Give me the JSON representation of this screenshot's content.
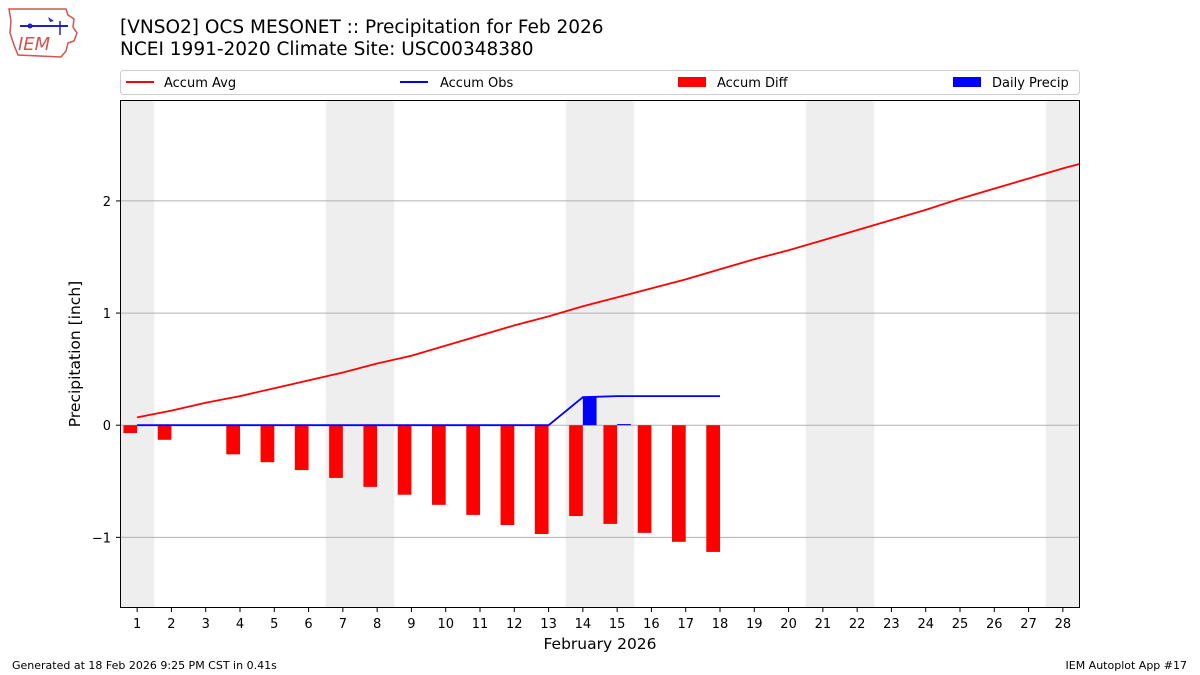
{
  "header": {
    "title_line1": "[VNSO2] OCS MESONET :: Precipitation for Feb 2026",
    "title_line2": "NCEI 1991-2020 Climate Site: USC00348380",
    "logo_text": "IEM"
  },
  "footer": {
    "generated": "Generated at 18 Feb 2026 9:25 PM CST in 0.41s",
    "app": "IEM Autoplot App #17"
  },
  "colors": {
    "accum_avg": "#ff0000",
    "accum_obs": "#0000ff",
    "accum_diff": "#ff0000",
    "daily_precip": "#0000ff",
    "weekend_shade": "#eeeeee",
    "grid": "#b0b0b0"
  },
  "chart_data": {
    "type": "bar",
    "title": "[VNSO2] OCS MESONET :: Precipitation for Feb 2026",
    "subtitle": "NCEI 1991-2020 Climate Site: USC00348380",
    "xlabel": "February 2026",
    "ylabel": "Precipitation [inch]",
    "xlim": [
      0.5,
      28.5
    ],
    "ylim": [
      -1.63,
      2.9
    ],
    "yticks": [
      -1,
      0,
      1,
      2
    ],
    "ytick_labels": [
      "−1",
      "0",
      "1",
      "2"
    ],
    "xticks": [
      1,
      2,
      3,
      4,
      5,
      6,
      7,
      8,
      9,
      10,
      11,
      12,
      13,
      14,
      15,
      16,
      17,
      18,
      19,
      20,
      21,
      22,
      23,
      24,
      25,
      26,
      27,
      28
    ],
    "grid": "y",
    "legend": {
      "placement": "top",
      "entries": [
        {
          "label": "Accum Avg",
          "kind": "line",
          "color": "#ff0000"
        },
        {
          "label": "Accum Obs",
          "kind": "line",
          "color": "#0000ff"
        },
        {
          "label": "Accum Diff",
          "kind": "bar",
          "color": "#ff0000"
        },
        {
          "label": "Daily Precip",
          "kind": "bar",
          "color": "#0000ff"
        }
      ]
    },
    "weekend_spans": [
      [
        0.5,
        1.5
      ],
      [
        6.5,
        8.5
      ],
      [
        13.5,
        15.5
      ],
      [
        20.5,
        22.5
      ],
      [
        27.5,
        28.5
      ]
    ],
    "series": [
      {
        "name": "Accum Avg",
        "kind": "line",
        "x": [
          1,
          2,
          3,
          4,
          5,
          6,
          7,
          8,
          9,
          10,
          11,
          12,
          13,
          14,
          15,
          16,
          17,
          18,
          19,
          20,
          21,
          22,
          23,
          24,
          25,
          26,
          27,
          28,
          28.5
        ],
        "values": [
          0.07,
          0.13,
          0.2,
          0.26,
          0.33,
          0.4,
          0.47,
          0.55,
          0.62,
          0.71,
          0.8,
          0.89,
          0.97,
          1.06,
          1.14,
          1.22,
          1.3,
          1.39,
          1.48,
          1.56,
          1.65,
          1.74,
          1.83,
          1.92,
          2.02,
          2.11,
          2.2,
          2.29,
          2.33
        ]
      },
      {
        "name": "Accum Obs",
        "kind": "line",
        "x": [
          1,
          2,
          3,
          4,
          5,
          6,
          7,
          8,
          9,
          10,
          11,
          12,
          13,
          14,
          15,
          16,
          17,
          18
        ],
        "values": [
          0.0,
          0.0,
          null,
          0.0,
          0.0,
          0.0,
          0.0,
          0.0,
          0.0,
          0.0,
          0.0,
          0.0,
          0.0,
          0.25,
          0.26,
          0.26,
          0.26,
          0.26
        ]
      },
      {
        "name": "Accum Diff",
        "kind": "bar",
        "x": [
          1,
          2,
          3,
          4,
          5,
          6,
          7,
          8,
          9,
          10,
          11,
          12,
          13,
          14,
          15,
          16,
          17,
          18
        ],
        "values": [
          -0.07,
          -0.13,
          null,
          -0.26,
          -0.33,
          -0.4,
          -0.47,
          -0.55,
          -0.62,
          -0.71,
          -0.8,
          -0.89,
          -0.97,
          -0.81,
          -0.88,
          -0.96,
          -1.04,
          -1.13
        ]
      },
      {
        "name": "Daily Precip",
        "kind": "bar",
        "x": [
          1,
          2,
          3,
          4,
          5,
          6,
          7,
          8,
          9,
          10,
          11,
          12,
          13,
          14,
          15,
          16,
          17,
          18
        ],
        "values": [
          0,
          0,
          0,
          0,
          0,
          0,
          0,
          0,
          0,
          0,
          0,
          0,
          0,
          0.25,
          0.01,
          0,
          0,
          0
        ]
      }
    ]
  }
}
